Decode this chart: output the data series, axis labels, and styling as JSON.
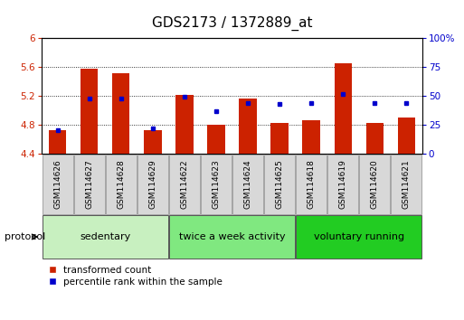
{
  "title": "GDS2173 / 1372889_at",
  "samples": [
    "GSM114626",
    "GSM114627",
    "GSM114628",
    "GSM114629",
    "GSM114622",
    "GSM114623",
    "GSM114624",
    "GSM114625",
    "GSM114618",
    "GSM114619",
    "GSM114620",
    "GSM114621"
  ],
  "transformed_count": [
    4.72,
    5.58,
    5.52,
    4.72,
    5.22,
    4.8,
    5.16,
    4.82,
    4.86,
    5.66,
    4.82,
    4.9
  ],
  "percentile_rank": [
    20,
    48,
    48,
    22,
    49,
    37,
    44,
    43,
    44,
    52,
    44,
    44
  ],
  "ylim_left": [
    4.4,
    6.0
  ],
  "ylim_right": [
    0,
    100
  ],
  "yticks_left": [
    4.4,
    4.8,
    5.2,
    5.6,
    6.0
  ],
  "ytick_labels_left": [
    "4.4",
    "4.8",
    "5.2",
    "5.6",
    "6"
  ],
  "yticks_right": [
    0,
    25,
    50,
    75,
    100
  ],
  "ytick_labels_right": [
    "0",
    "25",
    "50",
    "75",
    "100%"
  ],
  "bar_color": "#cc2200",
  "dot_color": "#0000cc",
  "bar_width": 0.55,
  "groups": [
    {
      "label": "sedentary",
      "indices": [
        0,
        1,
        2,
        3
      ],
      "color": "#c8f0c0"
    },
    {
      "label": "twice a week activity",
      "indices": [
        4,
        5,
        6,
        7
      ],
      "color": "#80e880"
    },
    {
      "label": "voluntary running",
      "indices": [
        8,
        9,
        10,
        11
      ],
      "color": "#22cc22"
    }
  ],
  "protocol_label": "protocol",
  "legend_items": [
    {
      "label": "transformed count",
      "color": "#cc2200"
    },
    {
      "label": "percentile rank within the sample",
      "color": "#0000cc"
    }
  ],
  "bar_base": 4.4,
  "background_color": "#ffffff",
  "tick_color_left": "#cc2200",
  "tick_color_right": "#0000cc",
  "grid_color": "#000000",
  "sample_box_color": "#d8d8d8",
  "title_fontsize": 11,
  "tick_fontsize": 7.5,
  "sample_fontsize": 6.5,
  "group_fontsize": 8,
  "legend_fontsize": 7.5
}
